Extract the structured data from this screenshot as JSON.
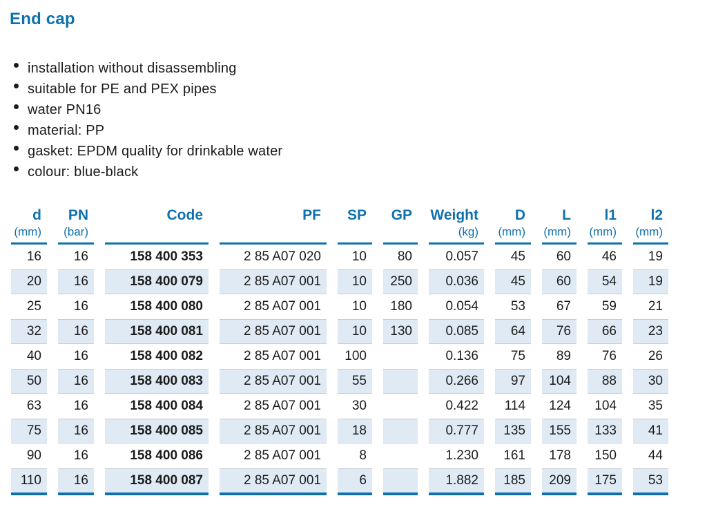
{
  "page": {
    "title": "End cap"
  },
  "bullets": [
    "installation without disassembling",
    "suitable for PE and PEX pipes",
    "water PN16",
    "material: PP",
    "gasket: EPDM quality for drinkable water",
    "colour: blue-black"
  ],
  "colors": {
    "accent_blue": "#0e71ad",
    "row_shade": "#dfeaf4",
    "shade_border": "#c9ced4",
    "text": "#1b1b1b"
  },
  "table": {
    "columns": [
      {
        "key": "d",
        "label": "d",
        "unit": "(mm)"
      },
      {
        "key": "pn",
        "label": "PN",
        "unit": "(bar)"
      },
      {
        "key": "code",
        "label": "Code",
        "unit": ""
      },
      {
        "key": "pf",
        "label": "PF",
        "unit": ""
      },
      {
        "key": "sp",
        "label": "SP",
        "unit": ""
      },
      {
        "key": "gp",
        "label": "GP",
        "unit": ""
      },
      {
        "key": "weight",
        "label": "Weight",
        "unit": "(kg)"
      },
      {
        "key": "D",
        "label": "D",
        "unit": "(mm)"
      },
      {
        "key": "L",
        "label": "L",
        "unit": "(mm)"
      },
      {
        "key": "l1",
        "label": "l1",
        "unit": "(mm)"
      },
      {
        "key": "l2",
        "label": "l2",
        "unit": "(mm)"
      }
    ],
    "rows": [
      [
        "16",
        "16",
        "158 400 353",
        "2 85 A07 020",
        "10",
        "80",
        "0.057",
        "45",
        "60",
        "46",
        "19"
      ],
      [
        "20",
        "16",
        "158 400 079",
        "2 85 A07 001",
        "10",
        "250",
        "0.036",
        "45",
        "60",
        "54",
        "19"
      ],
      [
        "25",
        "16",
        "158 400 080",
        "2 85 A07 001",
        "10",
        "180",
        "0.054",
        "53",
        "67",
        "59",
        "21"
      ],
      [
        "32",
        "16",
        "158 400 081",
        "2 85 A07 001",
        "10",
        "130",
        "0.085",
        "64",
        "76",
        "66",
        "23"
      ],
      [
        "40",
        "16",
        "158 400 082",
        "2 85 A07 001",
        "100",
        "",
        "0.136",
        "75",
        "89",
        "76",
        "26"
      ],
      [
        "50",
        "16",
        "158 400 083",
        "2 85 A07 001",
        "55",
        "",
        "0.266",
        "97",
        "104",
        "88",
        "30"
      ],
      [
        "63",
        "16",
        "158 400 084",
        "2 85 A07 001",
        "30",
        "",
        "0.422",
        "114",
        "124",
        "104",
        "35"
      ],
      [
        "75",
        "16",
        "158 400 085",
        "2 85 A07 001",
        "18",
        "",
        "0.777",
        "135",
        "155",
        "133",
        "41"
      ],
      [
        "90",
        "16",
        "158 400 086",
        "2 85 A07 001",
        "8",
        "",
        "1.230",
        "161",
        "178",
        "150",
        "44"
      ],
      [
        "110",
        "16",
        "158 400 087",
        "2 85 A07 001",
        "6",
        "",
        "1.882",
        "185",
        "209",
        "175",
        "53"
      ]
    ]
  }
}
